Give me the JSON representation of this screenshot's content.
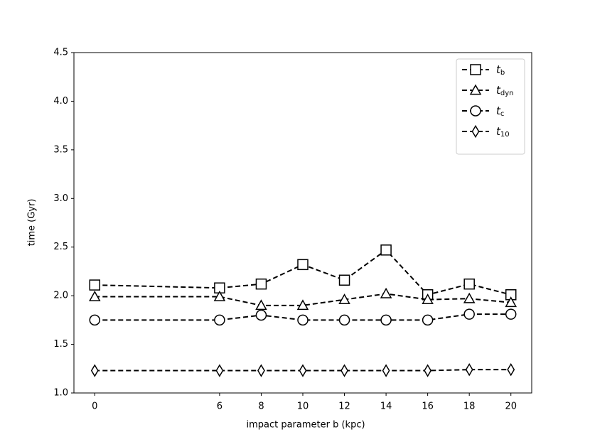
{
  "chart_data": {
    "type": "line",
    "xlabel": "impact parameter b (kpc)",
    "ylabel": "time (Gyr)",
    "x": [
      0,
      6,
      8,
      10,
      12,
      14,
      16,
      18,
      20
    ],
    "series": [
      {
        "name": "tb",
        "color": "#000000",
        "marker": "square",
        "values": [
          2.11,
          2.08,
          2.12,
          2.32,
          2.16,
          2.47,
          2.01,
          2.12,
          2.01
        ]
      },
      {
        "name": "tdyn",
        "color": "#000000",
        "marker": "triangle",
        "values": [
          1.99,
          1.99,
          1.9,
          1.9,
          1.96,
          2.02,
          1.96,
          1.97,
          1.93
        ]
      },
      {
        "name": "tc",
        "color": "#000000",
        "marker": "circle",
        "values": [
          1.75,
          1.75,
          1.8,
          1.75,
          1.75,
          1.75,
          1.75,
          1.81,
          1.81
        ]
      },
      {
        "name": "t10",
        "color": "#000000",
        "marker": "diamond",
        "values": [
          1.23,
          1.23,
          1.23,
          1.23,
          1.23,
          1.23,
          1.23,
          1.24,
          1.24
        ]
      }
    ],
    "xlim": [
      -1,
      21
    ],
    "xticks": [
      0,
      6,
      8,
      10,
      12,
      14,
      16,
      18,
      20
    ],
    "ylim": [
      1.0,
      4.5
    ],
    "yticks": [
      {
        "value": 1.0,
        "label": "1.0"
      },
      {
        "value": 1.5,
        "label": "1.5"
      },
      {
        "value": 2.0,
        "label": "2.0"
      },
      {
        "value": 2.5,
        "label": "2.5"
      },
      {
        "value": 3.0,
        "label": "3.0"
      },
      {
        "value": 3.5,
        "label": "3.5"
      },
      {
        "value": 4.0,
        "label": "4.0"
      },
      {
        "value": 4.5,
        "label": "4.5"
      }
    ],
    "grid": false,
    "legend": "upper right",
    "linestyle": "dashed"
  }
}
